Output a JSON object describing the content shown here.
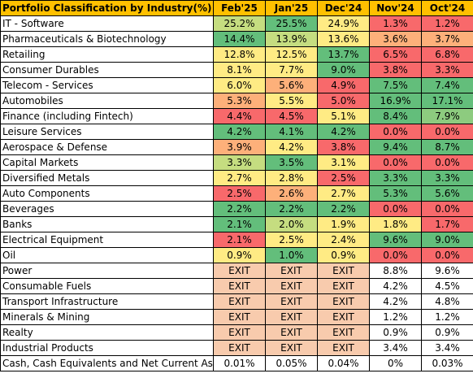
{
  "colors": {
    "header": "#ffc000",
    "green_dark": "#63be7b",
    "green_mid": "#8dcb7f",
    "green_light": "#c5dd80",
    "yellow": "#ffeb84",
    "orange": "#fdb07a",
    "red": "#f8696b",
    "exit": "#f8cbad"
  },
  "table": {
    "headers": [
      "Portfolio Classification by Industry(%)",
      "Feb'25",
      "Jan'25",
      "Dec'24",
      "Nov'24",
      "Oct'24"
    ],
    "rows": [
      {
        "label": "IT - Software",
        "cells": [
          {
            "v": "25.2%",
            "c": "green_light"
          },
          {
            "v": "25.5%",
            "c": "green_dark"
          },
          {
            "v": "24.9%",
            "c": "yellow"
          },
          {
            "v": "1.3%",
            "c": "red"
          },
          {
            "v": "1.2%",
            "c": "red"
          }
        ]
      },
      {
        "label": "Pharmaceuticals & Biotechnology",
        "cells": [
          {
            "v": "14.4%",
            "c": "green_dark"
          },
          {
            "v": "13.9%",
            "c": "green_light"
          },
          {
            "v": "13.6%",
            "c": "yellow"
          },
          {
            "v": "3.6%",
            "c": "orange"
          },
          {
            "v": "3.7%",
            "c": "orange"
          }
        ]
      },
      {
        "label": "Retailing",
        "cells": [
          {
            "v": "12.8%",
            "c": "yellow"
          },
          {
            "v": "12.5%",
            "c": "yellow"
          },
          {
            "v": "13.7%",
            "c": "green_dark"
          },
          {
            "v": "6.5%",
            "c": "red"
          },
          {
            "v": "6.8%",
            "c": "red"
          }
        ]
      },
      {
        "label": "Consumer Durables",
        "cells": [
          {
            "v": "8.1%",
            "c": "yellow"
          },
          {
            "v": "7.7%",
            "c": "yellow"
          },
          {
            "v": "9.0%",
            "c": "green_dark"
          },
          {
            "v": "3.8%",
            "c": "red"
          },
          {
            "v": "3.3%",
            "c": "red"
          }
        ]
      },
      {
        "label": "Telecom - Services",
        "cells": [
          {
            "v": "6.0%",
            "c": "yellow"
          },
          {
            "v": "5.6%",
            "c": "orange"
          },
          {
            "v": "4.9%",
            "c": "red"
          },
          {
            "v": "7.5%",
            "c": "green_dark"
          },
          {
            "v": "7.4%",
            "c": "green_dark"
          }
        ]
      },
      {
        "label": "Automobiles",
        "cells": [
          {
            "v": "5.3%",
            "c": "orange"
          },
          {
            "v": "5.5%",
            "c": "yellow"
          },
          {
            "v": "5.0%",
            "c": "red"
          },
          {
            "v": "16.9%",
            "c": "green_dark"
          },
          {
            "v": "17.1%",
            "c": "green_dark"
          }
        ]
      },
      {
        "label": "Finance (including Fintech)",
        "cells": [
          {
            "v": "4.4%",
            "c": "red"
          },
          {
            "v": "4.5%",
            "c": "red"
          },
          {
            "v": "5.1%",
            "c": "yellow"
          },
          {
            "v": "8.4%",
            "c": "green_dark"
          },
          {
            "v": "7.9%",
            "c": "green_mid"
          }
        ]
      },
      {
        "label": "Leisure Services",
        "cells": [
          {
            "v": "4.2%",
            "c": "green_dark"
          },
          {
            "v": "4.1%",
            "c": "green_dark"
          },
          {
            "v": "4.2%",
            "c": "green_dark"
          },
          {
            "v": "0.0%",
            "c": "red"
          },
          {
            "v": "0.0%",
            "c": "red"
          }
        ]
      },
      {
        "label": "Aerospace & Defense",
        "cells": [
          {
            "v": "3.9%",
            "c": "orange"
          },
          {
            "v": "4.2%",
            "c": "yellow"
          },
          {
            "v": "3.8%",
            "c": "red"
          },
          {
            "v": "9.4%",
            "c": "green_dark"
          },
          {
            "v": "8.7%",
            "c": "green_dark"
          }
        ]
      },
      {
        "label": "Capital Markets",
        "cells": [
          {
            "v": "3.3%",
            "c": "green_light"
          },
          {
            "v": "3.5%",
            "c": "green_dark"
          },
          {
            "v": "3.1%",
            "c": "yellow"
          },
          {
            "v": "0.0%",
            "c": "red"
          },
          {
            "v": "0.0%",
            "c": "red"
          }
        ]
      },
      {
        "label": "Diversified Metals",
        "cells": [
          {
            "v": "2.7%",
            "c": "yellow"
          },
          {
            "v": "2.8%",
            "c": "yellow"
          },
          {
            "v": "2.5%",
            "c": "red"
          },
          {
            "v": "3.3%",
            "c": "green_dark"
          },
          {
            "v": "3.3%",
            "c": "green_dark"
          }
        ]
      },
      {
        "label": "Auto Components",
        "cells": [
          {
            "v": "2.5%",
            "c": "red"
          },
          {
            "v": "2.6%",
            "c": "orange"
          },
          {
            "v": "2.7%",
            "c": "yellow"
          },
          {
            "v": "5.3%",
            "c": "green_dark"
          },
          {
            "v": "5.6%",
            "c": "green_dark"
          }
        ]
      },
      {
        "label": "Beverages",
        "cells": [
          {
            "v": "2.2%",
            "c": "green_dark"
          },
          {
            "v": "2.2%",
            "c": "green_dark"
          },
          {
            "v": "2.2%",
            "c": "green_dark"
          },
          {
            "v": "0.0%",
            "c": "red"
          },
          {
            "v": "0.0%",
            "c": "red"
          }
        ]
      },
      {
        "label": "Banks",
        "cells": [
          {
            "v": "2.1%",
            "c": "green_dark"
          },
          {
            "v": "2.0%",
            "c": "green_light"
          },
          {
            "v": "1.9%",
            "c": "yellow"
          },
          {
            "v": "1.8%",
            "c": "yellow"
          },
          {
            "v": "1.7%",
            "c": "red"
          }
        ]
      },
      {
        "label": "Electrical Equipment",
        "cells": [
          {
            "v": "2.1%",
            "c": "red"
          },
          {
            "v": "2.5%",
            "c": "yellow"
          },
          {
            "v": "2.4%",
            "c": "yellow"
          },
          {
            "v": "9.6%",
            "c": "green_dark"
          },
          {
            "v": "9.0%",
            "c": "green_dark"
          }
        ]
      },
      {
        "label": "Oil",
        "cells": [
          {
            "v": "0.9%",
            "c": "yellow"
          },
          {
            "v": "1.0%",
            "c": "green_dark"
          },
          {
            "v": "0.9%",
            "c": "yellow"
          },
          {
            "v": "0.0%",
            "c": "red"
          },
          {
            "v": "0.0%",
            "c": "red"
          }
        ]
      },
      {
        "label": "Power",
        "cells": [
          {
            "v": "EXIT",
            "c": "exit"
          },
          {
            "v": "EXIT",
            "c": "exit"
          },
          {
            "v": "EXIT",
            "c": "exit"
          },
          {
            "v": "8.8%",
            "c": "blank"
          },
          {
            "v": "9.6%",
            "c": "blank"
          }
        ]
      },
      {
        "label": "Consumable Fuels",
        "cells": [
          {
            "v": "EXIT",
            "c": "exit"
          },
          {
            "v": "EXIT",
            "c": "exit"
          },
          {
            "v": "EXIT",
            "c": "exit"
          },
          {
            "v": "4.2%",
            "c": "blank"
          },
          {
            "v": "4.5%",
            "c": "blank"
          }
        ]
      },
      {
        "label": "Transport Infrastructure",
        "cells": [
          {
            "v": "EXIT",
            "c": "exit"
          },
          {
            "v": "EXIT",
            "c": "exit"
          },
          {
            "v": "EXIT",
            "c": "exit"
          },
          {
            "v": "4.2%",
            "c": "blank"
          },
          {
            "v": "4.8%",
            "c": "blank"
          }
        ]
      },
      {
        "label": "Minerals & Mining",
        "cells": [
          {
            "v": "EXIT",
            "c": "exit"
          },
          {
            "v": "EXIT",
            "c": "exit"
          },
          {
            "v": "EXIT",
            "c": "exit"
          },
          {
            "v": "1.2%",
            "c": "blank"
          },
          {
            "v": "1.2%",
            "c": "blank"
          }
        ]
      },
      {
        "label": "Realty",
        "cells": [
          {
            "v": "EXIT",
            "c": "exit"
          },
          {
            "v": "EXIT",
            "c": "exit"
          },
          {
            "v": "EXIT",
            "c": "exit"
          },
          {
            "v": "0.9%",
            "c": "blank"
          },
          {
            "v": "0.9%",
            "c": "blank"
          }
        ]
      },
      {
        "label": "Industrial Products",
        "cells": [
          {
            "v": "EXIT",
            "c": "exit"
          },
          {
            "v": "EXIT",
            "c": "exit"
          },
          {
            "v": "EXIT",
            "c": "exit"
          },
          {
            "v": "3.4%",
            "c": "blank"
          },
          {
            "v": "3.4%",
            "c": "blank"
          }
        ]
      },
      {
        "label": "Cash, Cash Equivalents and Net Current Asse",
        "cells": [
          {
            "v": "0.01%",
            "c": "blank"
          },
          {
            "v": "0.05%",
            "c": "blank"
          },
          {
            "v": "0.04%",
            "c": "blank"
          },
          {
            "v": "0%",
            "c": "blank"
          },
          {
            "v": "0.03%",
            "c": "blank"
          }
        ]
      }
    ]
  }
}
